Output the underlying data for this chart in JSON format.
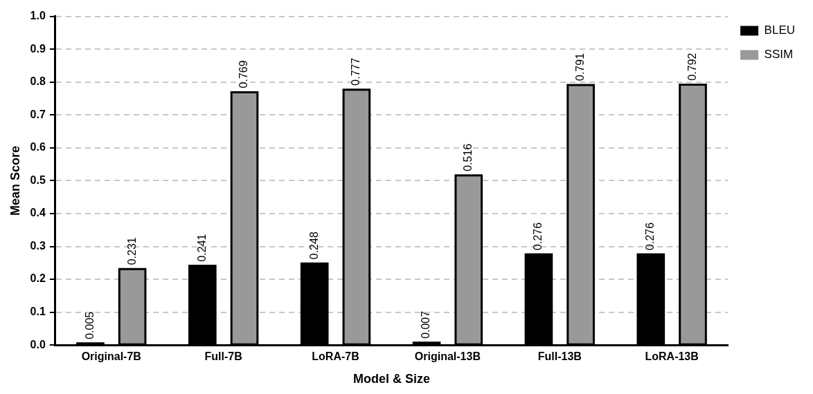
{
  "chart_data": {
    "type": "bar",
    "categories": [
      "Original-7B",
      "Full-7B",
      "LoRA-7B",
      "Original-13B",
      "Full-13B",
      "LoRA-13B"
    ],
    "series": [
      {
        "name": "BLEU",
        "color": "#000000",
        "values": [
          0.005,
          0.241,
          0.248,
          0.007,
          0.276,
          0.276
        ]
      },
      {
        "name": "SSIM",
        "color": "#999999",
        "values": [
          0.231,
          0.769,
          0.777,
          0.516,
          0.791,
          0.792
        ]
      }
    ],
    "xlabel": "Model & Size",
    "ylabel": "Mean Score",
    "ylim": [
      0,
      1
    ],
    "yticks": [
      {
        "value": 0,
        "label": "0.0"
      },
      0.1,
      0.2,
      0.3,
      0.4,
      0.5,
      0.6,
      0.7,
      0.8,
      0.9,
      {
        "value": 1,
        "label": "1.0"
      }
    ],
    "grid": "y",
    "legend": "top right",
    "data_labels": true
  }
}
